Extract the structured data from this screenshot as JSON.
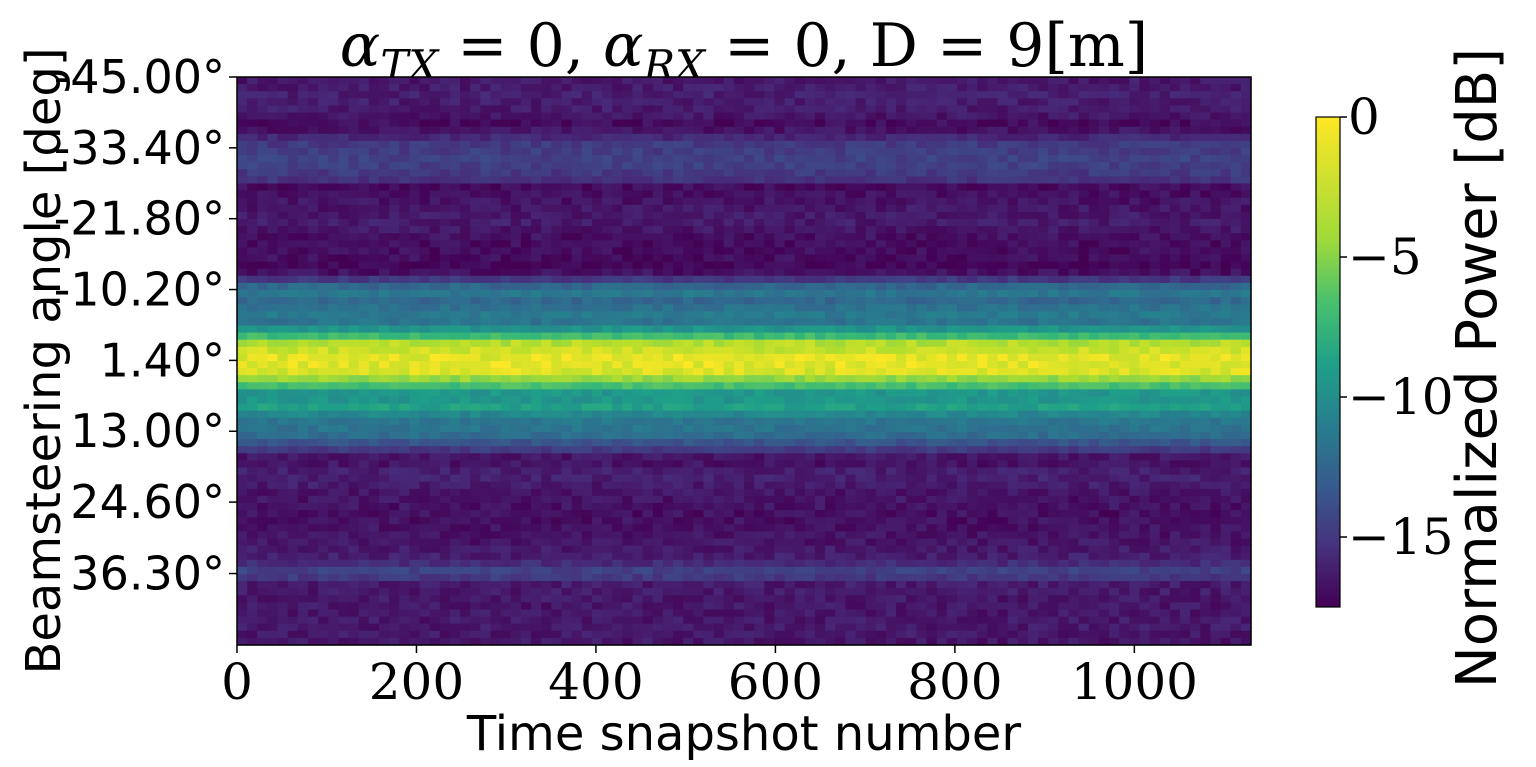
{
  "chart_data": {
    "type": "heatmap",
    "title": "αTX = 0, αRX = 0, D = 9[m]",
    "title_parts": {
      "a1": "α",
      "s1": "TX",
      "e1": " = 0, ",
      "a2": "α",
      "s2": "RX",
      "e2": " = 0, D = 9[m]"
    },
    "xlabel": "Time snapshot number",
    "ylabel": "Beamsteering angle [deg]",
    "colorbar_label": "Normalized Power [dB]",
    "colormap": "viridis",
    "xlim": [
      0,
      1130
    ],
    "x_ticks": [
      0,
      200,
      400,
      600,
      800,
      1000
    ],
    "x_tick_labels": [
      "0",
      "200",
      "400",
      "600",
      "800",
      "1000"
    ],
    "ylim": [
      -45.0,
      48.0
    ],
    "y_axis_inverted": true,
    "y_ticks": [
      -45.0,
      -33.4,
      -21.8,
      -10.2,
      1.4,
      13.0,
      24.6,
      36.3
    ],
    "y_tick_labels": [
      "-45.00°",
      "-33.40°",
      "-21.80°",
      "-10.20°",
      "1.40°",
      "13.00°",
      "24.60°",
      "36.30°"
    ],
    "clim": [
      -17.5,
      0
    ],
    "colorbar_ticks": [
      0,
      -5,
      -10,
      -15
    ],
    "colorbar_tick_labels": [
      "0",
      "−5",
      "−10",
      "−15"
    ],
    "angle_profile_db": [
      {
        "angle": -45.0,
        "db": -16.5
      },
      {
        "angle": -42.0,
        "db": -16.0
      },
      {
        "angle": -39.0,
        "db": -16.3
      },
      {
        "angle": -37.0,
        "db": -17.2
      },
      {
        "angle": -34.0,
        "db": -14.5
      },
      {
        "angle": -31.0,
        "db": -14.0
      },
      {
        "angle": -28.0,
        "db": -15.0
      },
      {
        "angle": -27.0,
        "db": -17.0
      },
      {
        "angle": -24.0,
        "db": -16.5
      },
      {
        "angle": -21.0,
        "db": -16.2
      },
      {
        "angle": -18.0,
        "db": -17.0
      },
      {
        "angle": -15.5,
        "db": -16.8
      },
      {
        "angle": -14.5,
        "db": -17.5
      },
      {
        "angle": -12.5,
        "db": -16.5
      },
      {
        "angle": -11.0,
        "db": -12.0
      },
      {
        "angle": -9.5,
        "db": -10.5
      },
      {
        "angle": -8.0,
        "db": -12.0
      },
      {
        "angle": -6.5,
        "db": -10.0
      },
      {
        "angle": -5.0,
        "db": -11.0
      },
      {
        "angle": -3.0,
        "db": -7.0
      },
      {
        "angle": -1.5,
        "db": -2.0
      },
      {
        "angle": 1.4,
        "db": -0.5
      },
      {
        "angle": 3.5,
        "db": -1.0
      },
      {
        "angle": 5.5,
        "db": -5.0
      },
      {
        "angle": 7.0,
        "db": -9.0
      },
      {
        "angle": 9.0,
        "db": -7.5
      },
      {
        "angle": 11.0,
        "db": -10.5
      },
      {
        "angle": 13.5,
        "db": -11.0
      },
      {
        "angle": 16.0,
        "db": -14.5
      },
      {
        "angle": 17.5,
        "db": -17.0
      },
      {
        "angle": 20.0,
        "db": -15.8
      },
      {
        "angle": 23.0,
        "db": -16.5
      },
      {
        "angle": 27.0,
        "db": -16.8
      },
      {
        "angle": 31.0,
        "db": -16.5
      },
      {
        "angle": 34.0,
        "db": -16.0
      },
      {
        "angle": 36.3,
        "db": -13.5
      },
      {
        "angle": 38.0,
        "db": -16.2
      },
      {
        "angle": 42.0,
        "db": -16.5
      },
      {
        "angle": 45.0,
        "db": -16.3
      },
      {
        "angle": 48.0,
        "db": -16.5
      }
    ]
  }
}
